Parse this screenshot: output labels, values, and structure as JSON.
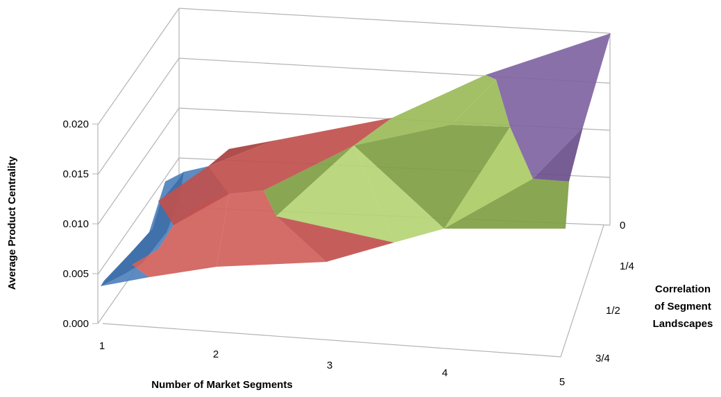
{
  "chart_data": {
    "type": "surface",
    "title": "",
    "xlabel": "Number of Market Segments",
    "ylabel": "Average Product Centrality",
    "zlabel_lines": [
      "Correlation",
      "of Segment",
      "Landscapes"
    ],
    "x_ticks": [
      "1",
      "2",
      "3",
      "4",
      "5"
    ],
    "y_ticks": [
      "0.000",
      "0.005",
      "0.010",
      "0.015",
      "0.020"
    ],
    "z_ticks": [
      "0",
      "1/4",
      "1/2",
      "3/4"
    ],
    "ylim": [
      0,
      0.02
    ],
    "value_bands": [
      {
        "range": [
          0.0,
          0.005
        ],
        "color": "#4f81bd"
      },
      {
        "range": [
          0.005,
          0.01
        ],
        "color": "#c0504d"
      },
      {
        "range": [
          0.01,
          0.015
        ],
        "color": "#9bbb59"
      },
      {
        "range": [
          0.015,
          0.02
        ],
        "color": "#8064a2"
      }
    ]
  }
}
